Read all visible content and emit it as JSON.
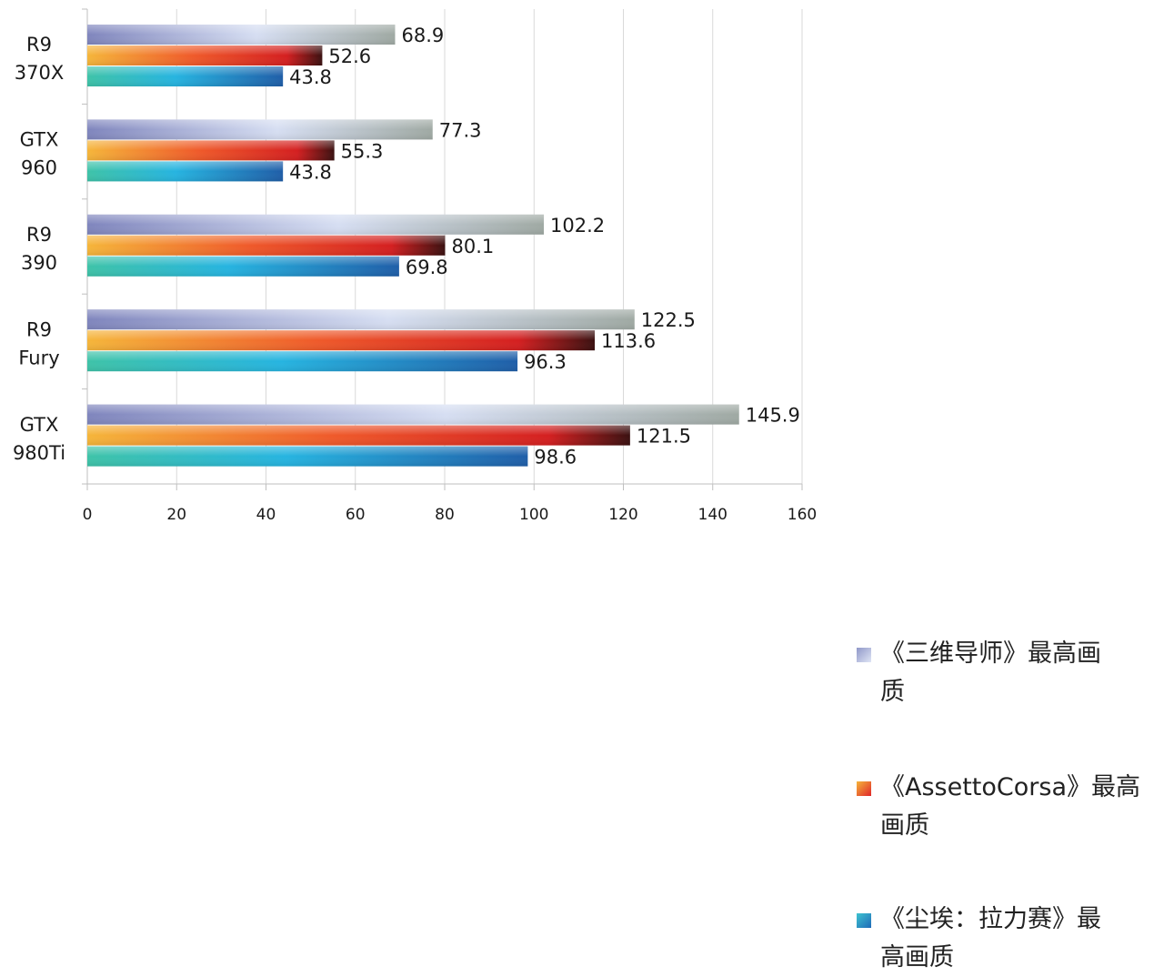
{
  "chart_data": {
    "type": "bar",
    "orientation": "horizontal",
    "title": "",
    "xlabel": "",
    "ylabel": "",
    "xlim": [
      0,
      160
    ],
    "x_ticks": [
      "0",
      "20",
      "40",
      "60",
      "80",
      "100",
      "120",
      "140",
      "160"
    ],
    "grid": true,
    "legend_position": "right",
    "categories": [
      {
        "line1": "R9",
        "line2": "370X"
      },
      {
        "line1": "GTX",
        "line2": "960"
      },
      {
        "line1": "R9",
        "line2": "390"
      },
      {
        "line1": "R9",
        "line2": "Fury"
      },
      {
        "line1": "GTX",
        "line2": "980Ti"
      }
    ],
    "series": [
      {
        "name": "《三维导师》最高画质",
        "color": "#b9c3e3",
        "values": [
          68.9,
          77.3,
          102.2,
          122.5,
          145.9
        ]
      },
      {
        "name": "《AssettoCorsa》最高画质",
        "color": "#e8402a",
        "values": [
          52.6,
          55.3,
          80.1,
          113.6,
          121.5
        ]
      },
      {
        "name": "《尘埃：拉力赛》最高画质",
        "color": "#1f8ad0",
        "values": [
          43.8,
          43.8,
          69.8,
          96.3,
          98.6
        ]
      }
    ],
    "value_labels": [
      [
        "68.9",
        "77.3",
        "102.2",
        "122.5",
        "145.9"
      ],
      [
        "52.6",
        "55.3",
        "80.1",
        "113.6",
        "121.5"
      ],
      [
        "43.8",
        "43.8",
        "69.8",
        "96.3",
        "98.6"
      ]
    ]
  },
  "legend": {
    "items": [
      {
        "line1": "《三维导师》最高画",
        "line2": "质"
      },
      {
        "line1": "《AssettoCorsa》最高",
        "line2": "画质"
      },
      {
        "line1": "《尘埃：拉力赛》最",
        "line2": "高画质"
      }
    ]
  }
}
